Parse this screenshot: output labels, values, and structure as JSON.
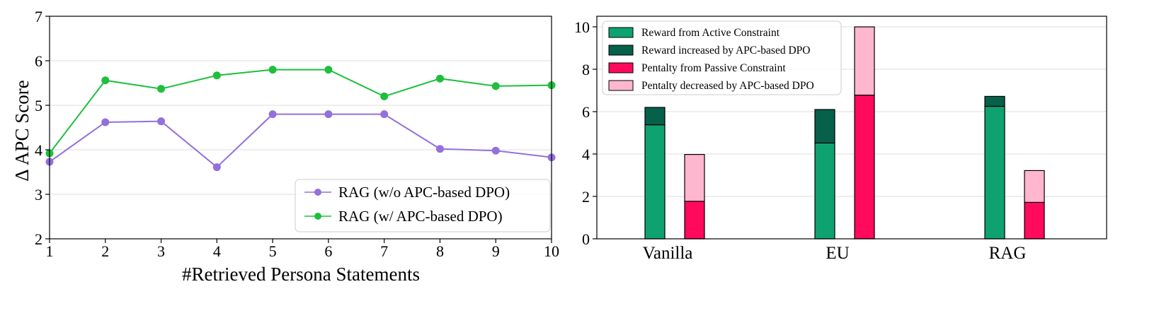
{
  "colors": {
    "rag_no_dpo": "#9370DB",
    "rag_dpo": "#1DBF3C",
    "active": "#0FA271",
    "active_inc": "#06604A",
    "passive": "#FF0A5C",
    "passive_dec": "#FFB6CF",
    "grid": "#DDDDDD"
  },
  "chart_data": [
    {
      "type": "line",
      "xlabel": "#Retrieved Persona Statements",
      "ylabel": "Δ APC Score",
      "xlim": [
        1,
        10
      ],
      "ylim": [
        2,
        7
      ],
      "xticks": [
        "1",
        "2",
        "3",
        "4",
        "5",
        "6",
        "7",
        "8",
        "9",
        "10"
      ],
      "yticks": [
        "2",
        "3",
        "4",
        "5",
        "6",
        "7"
      ],
      "x": [
        1,
        2,
        3,
        4,
        5,
        6,
        7,
        8,
        9,
        10
      ],
      "legend_position": "bottom-right",
      "series": [
        {
          "name": "RAG (w/o APC-based DPO)",
          "values": [
            3.73,
            4.62,
            4.64,
            3.61,
            4.8,
            4.8,
            4.8,
            4.02,
            3.98,
            3.83
          ]
        },
        {
          "name": "RAG (w/ APC-based DPO)",
          "values": [
            3.92,
            5.56,
            5.37,
            5.67,
            5.8,
            5.8,
            5.2,
            5.6,
            5.43,
            5.45
          ]
        }
      ]
    },
    {
      "type": "bar",
      "stacked": true,
      "categories": [
        "Vanilla",
        "EU",
        "RAG"
      ],
      "ylim": [
        0,
        10.5
      ],
      "yticks": [
        "0",
        "2",
        "4",
        "6",
        "8",
        "10"
      ],
      "legend_position": "top-left",
      "series": [
        {
          "name": "Reward from Active Constraint",
          "group": "reward",
          "values": [
            5.38,
            4.52,
            6.25
          ]
        },
        {
          "name": "Reward increased by APC-based DPO",
          "group": "reward",
          "values": [
            0.82,
            1.58,
            0.47
          ]
        },
        {
          "name": "Pentalty from Passive Constraint",
          "group": "penalty",
          "values": [
            1.77,
            6.78,
            1.72
          ]
        },
        {
          "name": "Pentalty decreased by APC-based DPO",
          "group": "penalty",
          "values": [
            2.21,
            3.22,
            1.5
          ]
        }
      ]
    }
  ]
}
